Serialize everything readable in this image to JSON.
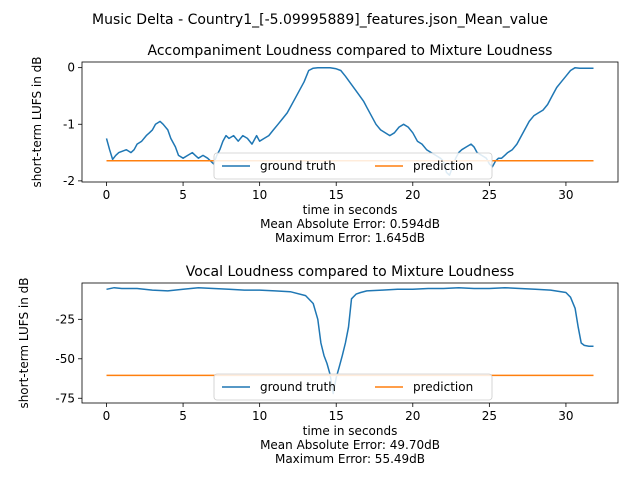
{
  "figure": {
    "suptitle": "Music Delta - Country1_[-5.09995889]_features.json_Mean_value"
  },
  "colors": {
    "ground_truth": "#1f77b4",
    "prediction": "#ff7f0e"
  },
  "chart_data": [
    {
      "type": "line",
      "title": "Accompaniment Loudness compared to Mixture Loudness",
      "xlabel": "time in seconds",
      "ylabel": "short-term LUFS in dB",
      "xlim": [
        -1.6,
        33.4
      ],
      "ylim": [
        -2.02,
        0.1
      ],
      "xticks": [
        0,
        5,
        10,
        15,
        20,
        25,
        30
      ],
      "yticks": [
        0,
        -1,
        -2
      ],
      "grid": false,
      "legend_position": "lower center",
      "metrics": [
        "Mean Absolute Error: 0.594dB",
        "Maximum Error: 1.645dB"
      ],
      "series": [
        {
          "name": "ground truth",
          "x": [
            0,
            0.2,
            0.4,
            0.6,
            0.8,
            1.0,
            1.3,
            1.6,
            1.8,
            2.0,
            2.3,
            2.6,
            2.8,
            3.0,
            3.2,
            3.5,
            3.7,
            4.0,
            4.2,
            4.5,
            4.7,
            5.0,
            5.3,
            5.6,
            5.8,
            6.0,
            6.3,
            6.6,
            6.8,
            7.0,
            7.2,
            7.4,
            7.6,
            7.8,
            8.0,
            8.3,
            8.6,
            8.9,
            9.2,
            9.5,
            9.8,
            10.0,
            10.3,
            10.6,
            10.9,
            11.2,
            11.5,
            11.8,
            12.0,
            12.3,
            12.6,
            12.9,
            13.2,
            13.5,
            13.8,
            14.0,
            14.3,
            14.6,
            15.0,
            15.3,
            15.6,
            16.0,
            16.4,
            16.8,
            17.0,
            17.3,
            17.6,
            17.9,
            18.2,
            18.5,
            18.8,
            19.1,
            19.4,
            19.7,
            20.0,
            20.3,
            20.6,
            20.9,
            21.2,
            21.5,
            21.8,
            22.0,
            22.2,
            22.4,
            22.6,
            22.8,
            23.0,
            23.2,
            23.5,
            23.8,
            24.0,
            24.2,
            24.5,
            24.8,
            25.0,
            25.2,
            25.4,
            25.6,
            25.8,
            26.0,
            26.2,
            26.5,
            26.8,
            27.0,
            27.3,
            27.6,
            27.9,
            28.2,
            28.5,
            28.8,
            29.1,
            29.4,
            29.7,
            30.0,
            30.3,
            30.6,
            30.9,
            31.2,
            31.5,
            31.8
          ],
          "values": [
            -1.25,
            -1.45,
            -1.62,
            -1.55,
            -1.5,
            -1.48,
            -1.45,
            -1.5,
            -1.45,
            -1.35,
            -1.3,
            -1.2,
            -1.15,
            -1.1,
            -1.0,
            -0.95,
            -1.0,
            -1.1,
            -1.25,
            -1.4,
            -1.55,
            -1.6,
            -1.55,
            -1.5,
            -1.55,
            -1.6,
            -1.55,
            -1.6,
            -1.65,
            -1.7,
            -1.55,
            -1.45,
            -1.3,
            -1.2,
            -1.25,
            -1.2,
            -1.3,
            -1.2,
            -1.25,
            -1.35,
            -1.2,
            -1.3,
            -1.25,
            -1.2,
            -1.1,
            -1.0,
            -0.9,
            -0.8,
            -0.7,
            -0.55,
            -0.4,
            -0.25,
            -0.05,
            -0.01,
            0,
            0,
            0,
            0,
            -0.02,
            -0.05,
            -0.15,
            -0.3,
            -0.45,
            -0.6,
            -0.7,
            -0.85,
            -1.0,
            -1.1,
            -1.15,
            -1.2,
            -1.15,
            -1.05,
            -1.0,
            -1.05,
            -1.15,
            -1.3,
            -1.35,
            -1.45,
            -1.5,
            -1.55,
            -1.6,
            -1.65,
            -1.85,
            -1.9,
            -1.75,
            -1.6,
            -1.5,
            -1.45,
            -1.4,
            -1.35,
            -1.4,
            -1.5,
            -1.55,
            -1.6,
            -1.7,
            -1.75,
            -1.65,
            -1.6,
            -1.6,
            -1.55,
            -1.5,
            -1.45,
            -1.35,
            -1.25,
            -1.1,
            -0.95,
            -0.85,
            -0.8,
            -0.75,
            -0.65,
            -0.5,
            -0.35,
            -0.25,
            -0.15,
            -0.05,
            0,
            -0.01,
            -0.01,
            -0.01,
            -0.01
          ]
        },
        {
          "name": "prediction",
          "x": [
            0,
            31.8
          ],
          "values": [
            -1.645,
            -1.645
          ]
        }
      ]
    },
    {
      "type": "line",
      "title": "Vocal Loudness compared to Mixture Loudness",
      "xlabel": "time in seconds",
      "ylabel": "short-term LUFS in dB",
      "xlim": [
        -1.6,
        33.4
      ],
      "ylim": [
        -78,
        -2
      ],
      "xticks": [
        0,
        5,
        10,
        15,
        20,
        25,
        30
      ],
      "yticks": [
        -25,
        -50,
        -75
      ],
      "grid": false,
      "legend_position": "lower center",
      "metrics": [
        "Mean Absolute Error: 49.70dB",
        "Maximum Error: 55.49dB"
      ],
      "series": [
        {
          "name": "ground truth",
          "x": [
            0,
            0.5,
            1.0,
            2.0,
            3.0,
            4.0,
            5.0,
            6.0,
            7.0,
            8.0,
            9.0,
            10.0,
            11.0,
            12.0,
            13.0,
            13.5,
            13.8,
            14.0,
            14.2,
            14.4,
            14.6,
            14.8,
            15.0,
            15.2,
            15.4,
            15.6,
            15.8,
            16.0,
            16.3,
            16.6,
            17.0,
            18.0,
            19.0,
            20.0,
            21.0,
            22.0,
            23.0,
            24.0,
            25.0,
            26.0,
            27.0,
            28.0,
            29.0,
            30.0,
            30.3,
            30.6,
            30.8,
            31.0,
            31.2,
            31.5,
            31.8
          ],
          "values": [
            -6,
            -5,
            -5.5,
            -5.5,
            -6.5,
            -7,
            -6,
            -5,
            -5.5,
            -6,
            -6.5,
            -6.5,
            -7,
            -7.5,
            -10,
            -15,
            -25,
            -40,
            -48,
            -53,
            -60,
            -72,
            -62,
            -55,
            -48,
            -40,
            -30,
            -12,
            -9,
            -8,
            -7,
            -6.5,
            -6,
            -6,
            -5.5,
            -5.5,
            -5,
            -5.5,
            -5.5,
            -5,
            -5.5,
            -6,
            -6.5,
            -8,
            -11,
            -18,
            -30,
            -40,
            -41.5,
            -42,
            -42
          ]
        },
        {
          "name": "prediction",
          "x": [
            0,
            31.8
          ],
          "values": [
            -60.5,
            -60.5
          ]
        }
      ]
    }
  ]
}
